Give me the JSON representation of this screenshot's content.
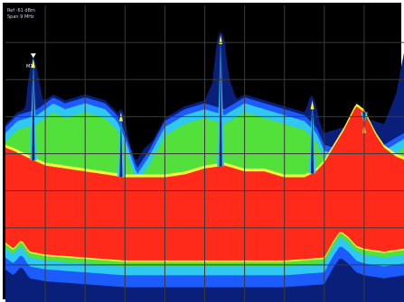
{
  "display": {
    "readout_lines": [
      "Ref -61 dBm",
      "Span 9 MHz"
    ],
    "marker_label": "M1"
  },
  "colors": {
    "background": "#000000",
    "grid": "#3a3a3a",
    "frame": "#ffffff",
    "red": "#ff2a1a",
    "orange": "#ff9a10",
    "yellow": "#f6f43a",
    "green": "#52e03a",
    "cyan": "#2ec8f0",
    "blue": "#1c5cff",
    "dark_blue": "#0a1f7a"
  },
  "chart_data": {
    "type": "area",
    "title": "",
    "xlabel": "",
    "ylabel": "",
    "grid": true,
    "grid_divisions": {
      "x": 10,
      "y": 8
    },
    "xlim": [
      0,
      100
    ],
    "ylim": [
      0,
      100
    ],
    "series": [
      {
        "role": "peak-trace",
        "x": [
          0,
          2,
          5,
          6,
          7,
          8,
          10,
          15,
          20,
          25,
          28,
          29,
          30,
          31,
          32,
          35,
          40,
          45,
          50,
          52,
          53,
          54,
          55,
          56,
          58,
          60,
          65,
          70,
          75,
          76,
          77,
          78,
          79,
          80,
          85,
          90,
          95,
          98,
          100
        ],
        "values": [
          56,
          58,
          64,
          76,
          82,
          76,
          62,
          58,
          54,
          52,
          60,
          64,
          60,
          52,
          44,
          50,
          56,
          63,
          66,
          72,
          86,
          90,
          86,
          74,
          66,
          62,
          58,
          58,
          60,
          66,
          68,
          64,
          58,
          55,
          57,
          60,
          58,
          68,
          82
        ]
      },
      {
        "role": "green-band-top",
        "x": [
          0,
          3,
          8,
          12,
          15,
          20,
          25,
          28,
          30,
          33,
          36,
          40,
          45,
          50,
          55,
          60,
          65,
          70,
          75,
          78,
          80,
          85,
          90,
          95,
          100
        ],
        "values": [
          58,
          62,
          64,
          68,
          66,
          68,
          66,
          62,
          56,
          44,
          50,
          60,
          64,
          66,
          64,
          68,
          66,
          64,
          62,
          58,
          52,
          50,
          54,
          52,
          56
        ]
      },
      {
        "role": "red-floor-top",
        "x": [
          0,
          2,
          5,
          10,
          15,
          20,
          25,
          30,
          35,
          40,
          45,
          50,
          55,
          60,
          65,
          70,
          75,
          78,
          80,
          85,
          88,
          90,
          93,
          95,
          98,
          100
        ],
        "values": [
          52,
          51,
          49,
          46,
          45,
          44,
          43,
          42,
          42,
          42,
          43,
          45,
          46,
          44,
          44,
          42,
          42,
          44,
          47,
          58,
          66,
          64,
          56,
          52,
          49,
          48
        ]
      },
      {
        "role": "red-floor-bottom",
        "x": [
          0,
          2,
          4,
          6,
          10,
          20,
          30,
          40,
          50,
          60,
          70,
          80,
          82,
          84,
          86,
          88,
          90,
          95,
          100
        ],
        "values": [
          20,
          18,
          21,
          17,
          16,
          15,
          14,
          14,
          14,
          14,
          14,
          15,
          20,
          24,
          22,
          19,
          18,
          17,
          18
        ]
      }
    ],
    "markers": [
      {
        "label": "M1",
        "x": 7,
        "y": 82
      }
    ]
  }
}
